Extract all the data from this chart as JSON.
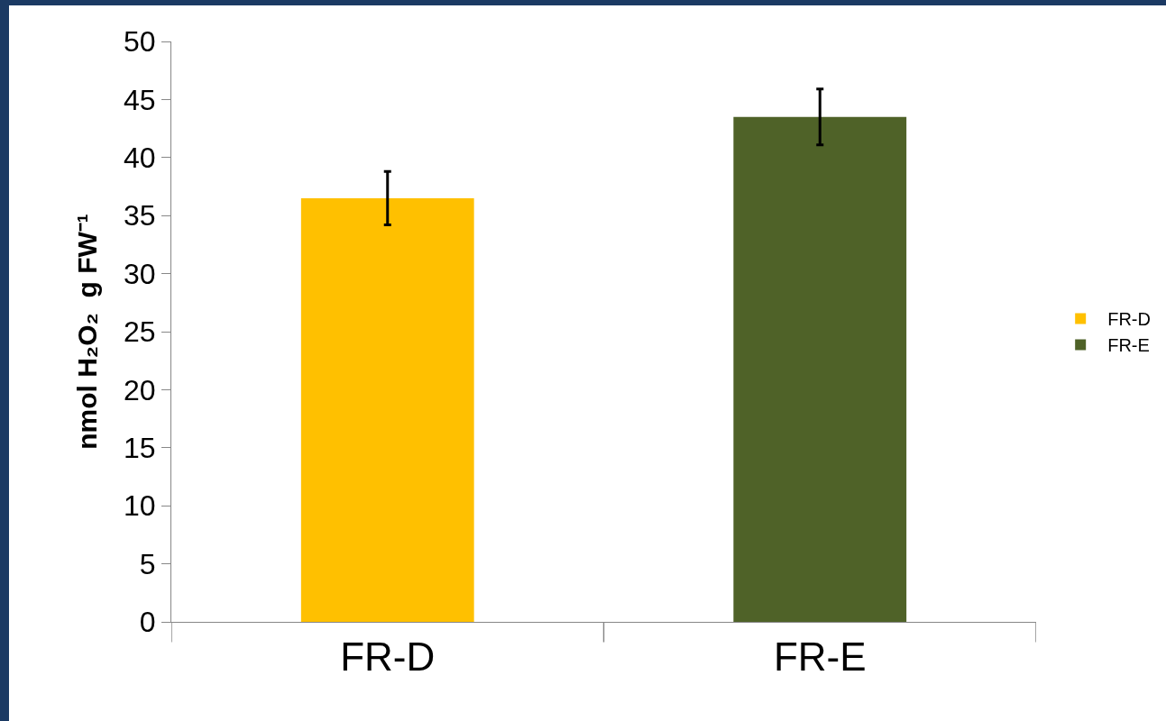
{
  "chart_data": {
    "type": "bar",
    "ylabel": "nmol H₂O₂  g FW⁻¹",
    "categories": [
      "FR-D",
      "FR-E"
    ],
    "series": [
      {
        "name": "FR-D",
        "color": "#ffc000",
        "values": [
          36.5,
          null
        ],
        "errors": [
          2.3,
          null
        ]
      },
      {
        "name": "FR-E",
        "color": "#4f6228",
        "values": [
          null,
          43.5
        ],
        "errors": [
          null,
          2.4
        ]
      }
    ],
    "ylim": [
      0,
      50
    ],
    "yticks": [
      0,
      5,
      10,
      15,
      20,
      25,
      30,
      35,
      40,
      45,
      50
    ],
    "grid": false,
    "legend": "right"
  }
}
